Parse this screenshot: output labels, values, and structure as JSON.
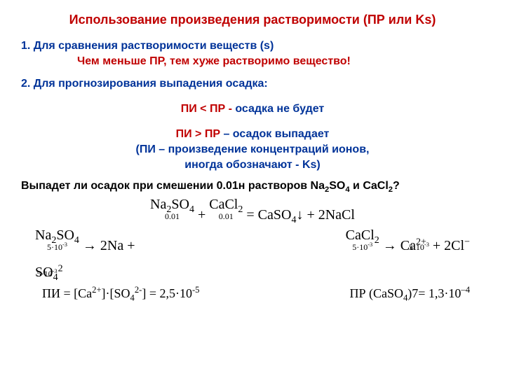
{
  "colors": {
    "red": "#c00000",
    "darkblue": "#003399",
    "black": "#000000",
    "background": "#ffffff"
  },
  "typography": {
    "body_family": "Arial",
    "formula_family": "Times New Roman",
    "title_size_pt": 18,
    "body_size_pt": 16,
    "formula_size_pt": 20
  },
  "title": "Использование произведения растворимости (ПР или Ks)",
  "point1": "1. Для сравнения растворимости веществ (s)",
  "point1_note": "Чем меньше ПР, тем хуже растворимо вещество!",
  "point2": "2. Для прогнозирования выпадения осадка:",
  "rule_no": {
    "lhs": "ПИ < ПР - ",
    "rhs": "осадка не будет"
  },
  "rule_yes": {
    "line1_red": "ПИ > ПР",
    "line1_blue": " – осадок выпадает",
    "line2": "(ПИ – произведение концентраций ионов,",
    "line3": "иногда обозначают - Ks)"
  },
  "question": {
    "pre": "Выпадет ли осадок при смешении 0.01н растворов Na",
    "s1": "2",
    "mid1": "SO",
    "s2": "4",
    "mid2": " и CaCl",
    "s3": "2",
    "post": "?"
  },
  "eq_main": {
    "t1": "Na",
    "t1s": "2",
    "t2": "SO",
    "t2s": "4",
    "c1": "0.01",
    "plus": " + ",
    "t3": "CaCl",
    "t3s": "2",
    "c2": "0.01",
    "eq": " = ",
    "t4": "CaSO",
    "t4s": "4",
    "arrowdown": "↓",
    "plus2": " + 2NaCl"
  },
  "eq_left": {
    "a": "Na",
    "as": "2",
    "b": "SO",
    "bs": "4",
    "c1": "5·10",
    "c1s": "-3",
    "arr": " → 2Na + SO",
    "d": "4",
    "ds": "2",
    "c2": "5·10",
    "c2s": "-3"
  },
  "eq_right": {
    "a": "CaCl",
    "as": "2",
    "c1": "5·10",
    "c1s": "-3",
    "arr": " → Ca",
    "b": "2+",
    "c": " + 2Cl",
    "d": "−",
    "c2": "5·10",
    "c2s": "-3"
  },
  "res_left": {
    "pre": "ПИ = [Ca",
    "s1": "2+",
    "mid": "]·[SO",
    "s2": "4",
    "s3": "2-",
    "post": "] = 2,5·10",
    "exp": "-5"
  },
  "res_right": {
    "pre": "ПР (CaSO",
    "s1": "4",
    "mid": ")7= 1,3·10",
    "exp": "–4"
  }
}
